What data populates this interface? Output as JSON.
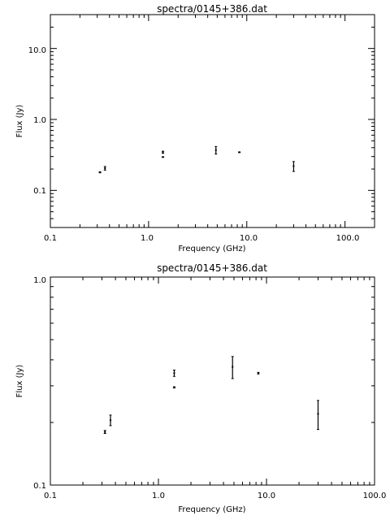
{
  "chart_data": [
    {
      "type": "scatter",
      "title": "spectra/0145+386.dat",
      "xlabel": "Frequency (GHz)",
      "ylabel": "Flux (Jy)",
      "x_scale": "log",
      "y_scale": "log",
      "xlim": [
        0.1,
        200
      ],
      "ylim": [
        0.03,
        30
      ],
      "grid": false,
      "legend": "none",
      "x_ticks": [
        {
          "value": 0.1,
          "label": "0.1"
        },
        {
          "value": 1.0,
          "label": "1.0"
        },
        {
          "value": 10.0,
          "label": "10.0"
        },
        {
          "value": 100.0,
          "label": "100.0"
        }
      ],
      "y_ticks": [
        {
          "value": 0.1,
          "label": "0.1"
        },
        {
          "value": 1.0,
          "label": "1.0"
        },
        {
          "value": 10.0,
          "label": "10.0"
        }
      ],
      "points": [
        {
          "x": 0.32,
          "y": 0.18,
          "err": 0.003
        },
        {
          "x": 0.36,
          "y": 0.205,
          "err": 0.012
        },
        {
          "x": 1.4,
          "y": 0.295,
          "err": 0.002
        },
        {
          "x": 1.4,
          "y": 0.345,
          "err": 0.012
        },
        {
          "x": 4.85,
          "y": 0.37,
          "err": 0.045
        },
        {
          "x": 8.4,
          "y": 0.345,
          "err": 0.003
        },
        {
          "x": 30.0,
          "y": 0.22,
          "err": 0.035
        }
      ]
    },
    {
      "type": "scatter",
      "title": "spectra/0145+386.dat",
      "xlabel": "Frequency (GHz)",
      "ylabel": "Flux (Jy)",
      "x_scale": "log",
      "y_scale": "log",
      "xlim": [
        0.1,
        100
      ],
      "ylim": [
        0.1,
        1.0
      ],
      "grid": false,
      "legend": "none",
      "x_ticks": [
        {
          "value": 0.1,
          "label": "0.1"
        },
        {
          "value": 1.0,
          "label": "1.0"
        },
        {
          "value": 10.0,
          "label": "10.0"
        },
        {
          "value": 100.0,
          "label": "100.0"
        }
      ],
      "y_ticks": [
        {
          "value": 0.1,
          "label": "0.1"
        },
        {
          "value": 1.0,
          "label": "1.0"
        }
      ],
      "points": [
        {
          "x": 0.32,
          "y": 0.18,
          "err": 0.003
        },
        {
          "x": 0.36,
          "y": 0.205,
          "err": 0.012
        },
        {
          "x": 1.4,
          "y": 0.295,
          "err": 0.002
        },
        {
          "x": 1.4,
          "y": 0.345,
          "err": 0.012
        },
        {
          "x": 4.85,
          "y": 0.37,
          "err": 0.045
        },
        {
          "x": 8.4,
          "y": 0.345,
          "err": 0.003
        },
        {
          "x": 30.0,
          "y": 0.22,
          "err": 0.035
        }
      ]
    }
  ]
}
